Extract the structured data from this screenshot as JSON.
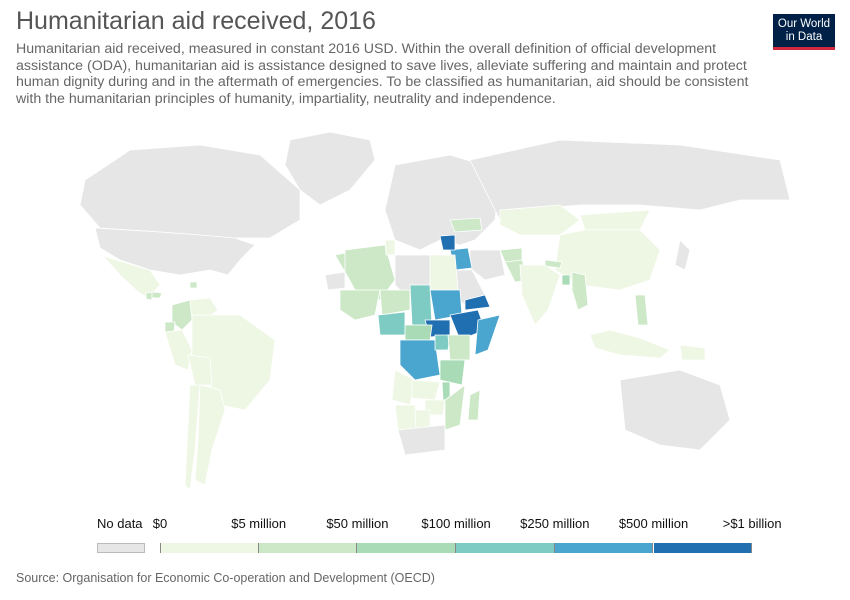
{
  "header": {
    "title": "Humanitarian aid received, 2016",
    "subtitle": "Humanitarian aid received, measured in constant 2016 USD. Within the overall definition of official development assistance (ODA), humanitarian aid is assistance designed to save lives, alleviate suffering and maintain and protect human dignity during and in the aftermath of emergencies. To be classified as humanitarian, aid should be consistent with the humanitarian principles of humanity, impartiality, neutrality and independence.",
    "logo_line1": "Our World",
    "logo_line2": "in Data"
  },
  "legend": {
    "no_data_label": "No data",
    "no_data_color": "#e6e6e6",
    "breaks": [
      "$0",
      "$5 million",
      "$50 million",
      "$100 million",
      "$250 million",
      "$500 million",
      ">$1 billion"
    ],
    "colors": [
      "#eef7e4",
      "#cce8c7",
      "#a8dbb6",
      "#7ecbc4",
      "#4aa5cf",
      "#1f6fb1"
    ]
  },
  "map_data": {
    "no_data_color": "#e6e6e6",
    "border_color": "#ffffff",
    "note": "",
    "countries": {
      "United States": -1,
      "Canada": -1,
      "Greenland": -1,
      "Russia": -1,
      "Europe": -1,
      "Australia": -1,
      "Saudi Arabia": -1,
      "Iran": -1,
      "Western Sahara": -1,
      "Libya": -1,
      "South Africa": -1,
      "Japan": -1,
      "Mexico": 0,
      "Brazil": 0,
      "Argentina": 0,
      "Chile": 0,
      "Peru": 0,
      "Bolivia": 0,
      "Venezuela": 0,
      "Kazakhstan": 0,
      "Mongolia": 0,
      "China": 0,
      "India": 0,
      "Indonesia": 0,
      "Papua New Guinea": 0,
      "Angola": 0,
      "Namibia": 0,
      "Botswana": 0,
      "Zimbabwe": 0,
      "Zambia": 0,
      "Egypt": 0,
      "Tunisia": 0,
      "Colombia": 1,
      "Ecuador": 1,
      "Algeria": 1,
      "Morocco": 1,
      "Mali": 1,
      "Niger": 1,
      "Afghanistan": 1,
      "Pakistan": 1,
      "Philippines": 1,
      "Guatemala": 1,
      "Honduras": 1,
      "Haiti": 1,
      "Madagascar": 1,
      "Mozambique": 1,
      "Kenya": 1,
      "Nepal": 1,
      "Myanmar": 1,
      "Ukraine": 1,
      "Central African Republic": 2,
      "Tanzania": 2,
      "Malawi": 2,
      "Bangladesh": 2,
      "Chad": 3,
      "Nigeria": 3,
      "Uganda": 3,
      "Sudan": 4,
      "DR Congo": 4,
      "Somalia": 4,
      "Iraq": 4,
      "South Sudan": 5,
      "Ethiopia": 5,
      "Yemen": 5,
      "Syria": 5
    }
  },
  "source": "Source: Organisation for Economic Co-operation and Development (OECD)"
}
